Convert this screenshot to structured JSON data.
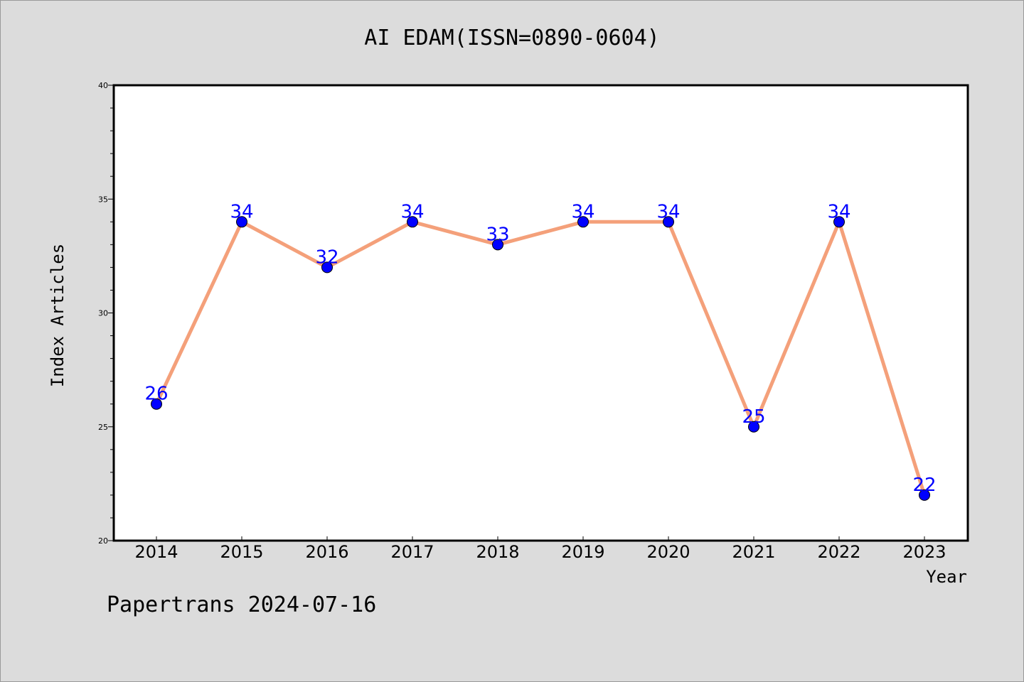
{
  "chart_data": {
    "type": "line",
    "title": "AI EDAM(ISSN=0890-0604)",
    "xlabel": "Year",
    "ylabel": "Index Articles",
    "categories": [
      "2014",
      "2015",
      "2016",
      "2017",
      "2018",
      "2019",
      "2020",
      "2021",
      "2022",
      "2023"
    ],
    "values": [
      26,
      34,
      32,
      34,
      33,
      34,
      34,
      25,
      34,
      22
    ],
    "ylim": [
      20,
      40
    ],
    "yticks": [
      20,
      25,
      30,
      35,
      40
    ],
    "grid": false,
    "line_color": "#f4a07a",
    "marker_color": "#0000ff",
    "label_color": "#0000ff"
  },
  "footer": "Papertrans 2024-07-16"
}
